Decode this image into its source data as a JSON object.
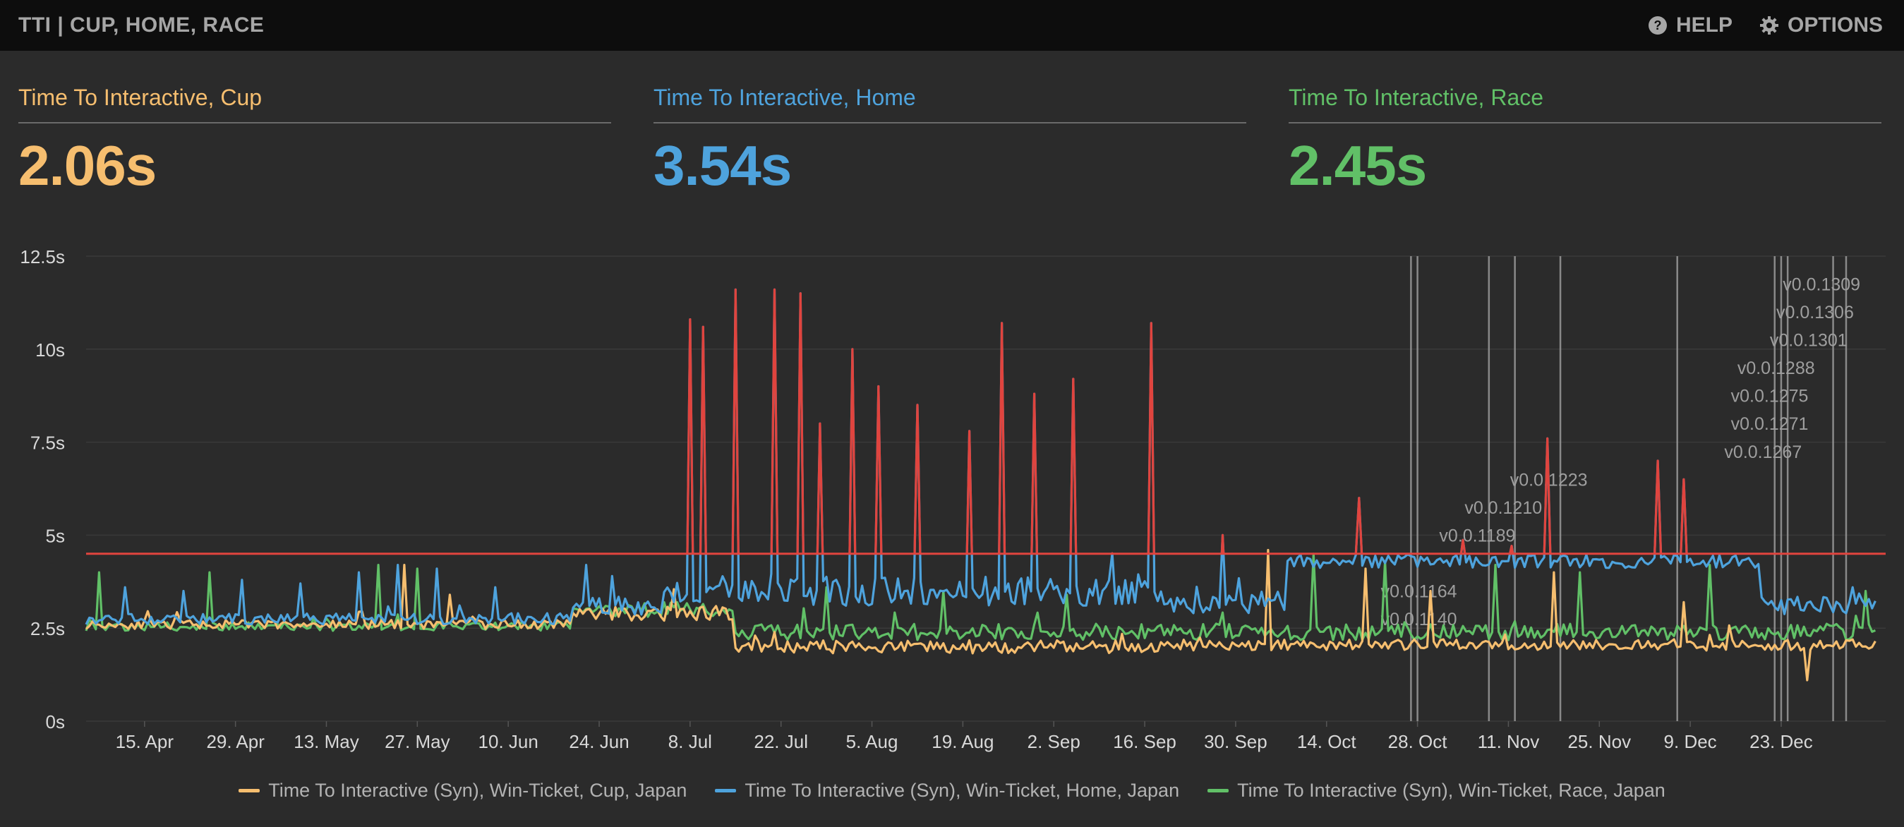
{
  "header": {
    "title": "TTI | CUP, HOME, RACE",
    "help_label": "HELP",
    "options_label": "OPTIONS"
  },
  "stats": [
    {
      "label": "Time To Interactive, Cup",
      "value": "2.06s",
      "color": "#f6be6f"
    },
    {
      "label": "Time To Interactive, Home",
      "value": "3.54s",
      "color": "#4ea3dd"
    },
    {
      "label": "Time To Interactive, Race",
      "value": "2.45s",
      "color": "#61c067"
    }
  ],
  "colors": {
    "cup": "#f6be6f",
    "home": "#4ea3dd",
    "race": "#61c067",
    "budget": "#e0443e",
    "grid": "#3a3a3a",
    "release_line": "#9a9a9a"
  },
  "chart_data": {
    "type": "line",
    "y_unit": "s",
    "ylim": [
      0,
      12.5
    ],
    "y_ticks": [
      "0s",
      "2.5s",
      "5s",
      "7.5s",
      "10s",
      "12.5s"
    ],
    "x_tick_labels": [
      "15. Apr",
      "29. Apr",
      "13. May",
      "27. May",
      "10. Jun",
      "24. Jun",
      "8. Jul",
      "22. Jul",
      "5. Aug",
      "19. Aug",
      "2. Sep",
      "16. Sep",
      "30. Sep",
      "14. Oct",
      "28. Oct",
      "11. Nov",
      "25. Nov",
      "9. Dec",
      "23. Dec"
    ],
    "x_range": [
      "06. Apr",
      "07. Jan"
    ],
    "threshold": {
      "value": 4.5,
      "note": "line above threshold drawn red"
    },
    "grid": true,
    "legend_position": "bottom",
    "series": [
      {
        "name": "Time To Interactive (Syn), Win-Ticket, Cup, Japan",
        "key": "cup",
        "segments": [
          {
            "from": "06. Apr",
            "to": "20. Jun",
            "base": 2.6,
            "noise": 0.12,
            "spikes": [
              [
                "25. May",
                4.2
              ],
              [
                "01. Jun",
                3.4
              ]
            ]
          },
          {
            "from": "20. Jun",
            "to": "15. Jul",
            "base": 2.9,
            "noise": 0.2,
            "spikes": []
          },
          {
            "from": "15. Jul",
            "to": "20. Sep",
            "base": 2.0,
            "noise": 0.18,
            "spikes": []
          },
          {
            "from": "20. Sep",
            "to": "07. Jan",
            "base": 2.05,
            "noise": 0.15,
            "spikes": [
              [
                "05. Oct",
                4.6
              ],
              [
                "20. Oct",
                4.1
              ],
              [
                "30. Oct",
                3.5
              ],
              [
                "18. Nov",
                4.0
              ],
              [
                "08. Dec",
                3.2
              ],
              [
                "27. Dec",
                1.1
              ]
            ]
          }
        ]
      },
      {
        "name": "Time To Interactive (Syn), Win-Ticket, Home, Japan",
        "key": "home",
        "segments": [
          {
            "from": "06. Apr",
            "to": "20. Jun",
            "base": 2.75,
            "noise": 0.15,
            "spikes": [
              [
                "12. Apr",
                3.6
              ],
              [
                "21. Apr",
                3.5
              ],
              [
                "30. Apr",
                3.8
              ],
              [
                "09. May",
                3.7
              ],
              [
                "18. May",
                4.0
              ],
              [
                "24. May",
                4.2
              ],
              [
                "30. May",
                4.1
              ],
              [
                "08. Jun",
                3.6
              ]
            ]
          },
          {
            "from": "20. Jun",
            "to": "04. Jul",
            "base": 3.1,
            "noise": 0.25,
            "spikes": [
              [
                "22. Jun",
                4.2
              ],
              [
                "26. Jun",
                3.9
              ]
            ]
          },
          {
            "from": "04. Jul",
            "to": "20. Sep",
            "base": 3.5,
            "noise": 0.4,
            "spikes": [
              [
                "08. Jul",
                10.8
              ],
              [
                "10. Jul",
                10.6
              ],
              [
                "15. Jul",
                11.6
              ],
              [
                "21. Jul",
                11.6
              ],
              [
                "25. Jul",
                11.5
              ],
              [
                "02. Aug",
                10.0
              ],
              [
                "12. Aug",
                8.5
              ],
              [
                "25. Aug",
                10.7
              ],
              [
                "05. Sep",
                9.2
              ],
              [
                "17. Sep",
                10.7
              ],
              [
                "28. Jul",
                8.0
              ],
              [
                "06. Aug",
                9.0
              ],
              [
                "20. Aug",
                7.8
              ],
              [
                "30. Aug",
                8.8
              ]
            ]
          },
          {
            "from": "20. Sep",
            "to": "08. Oct",
            "base": 3.2,
            "noise": 0.3,
            "spikes": [
              [
                "28. Sep",
                5.0
              ]
            ]
          },
          {
            "from": "08. Oct",
            "to": "20. Dec",
            "base": 4.3,
            "noise": 0.18,
            "spikes": [
              [
                "19. Oct",
                6.0
              ],
              [
                "17. Nov",
                7.6
              ],
              [
                "04. Dec",
                7.0
              ],
              [
                "08. Dec",
                6.5
              ]
            ]
          },
          {
            "from": "20. Dec",
            "to": "07. Jan",
            "base": 3.1,
            "noise": 0.25,
            "spikes": [
              [
                "03. Jan",
                3.6
              ]
            ]
          }
        ]
      },
      {
        "name": "Time To Interactive (Syn), Win-Ticket, Race, Japan",
        "key": "race",
        "segments": [
          {
            "from": "06. Apr",
            "to": "20. Jun",
            "base": 2.55,
            "noise": 0.12,
            "spikes": [
              [
                "08. Apr",
                4.0
              ],
              [
                "25. Apr",
                4.0
              ],
              [
                "21. May",
                4.2
              ],
              [
                "27. May",
                4.1
              ]
            ]
          },
          {
            "from": "20. Jun",
            "to": "15. Jul",
            "base": 3.0,
            "noise": 0.2,
            "spikes": []
          },
          {
            "from": "15. Jul",
            "to": "07. Jan",
            "base": 2.4,
            "noise": 0.22,
            "spikes": [
              [
                "29. Jul",
                3.6
              ],
              [
                "16. Aug",
                3.5
              ],
              [
                "04. Sep",
                3.4
              ],
              [
                "12. Oct",
                4.5
              ],
              [
                "23. Oct",
                4.3
              ],
              [
                "09. Nov",
                4.2
              ],
              [
                "22. Nov",
                4.0
              ],
              [
                "12. Dec",
                4.2
              ],
              [
                "05. Jan",
                3.5
              ]
            ]
          }
        ]
      }
    ],
    "release_markers": [
      {
        "label": "v0.0.1140",
        "date": "28. Oct",
        "y": 2.75
      },
      {
        "label": "v0.0.1164",
        "date": "28. Oct",
        "y": 3.5
      },
      {
        "label": "v0.0.1189",
        "date": "06. Nov",
        "y": 5.0
      },
      {
        "label": "v0.0.1210",
        "date": "10. Nov",
        "y": 5.75
      },
      {
        "label": "v0.0.1223",
        "date": "17. Nov",
        "y": 6.5
      },
      {
        "label": "v0.0.1267",
        "date": "20. Dec",
        "y": 7.25
      },
      {
        "label": "v0.0.1271",
        "date": "21. Dec",
        "y": 8.0
      },
      {
        "label": "v0.0.1275",
        "date": "21. Dec",
        "y": 8.75
      },
      {
        "label": "v0.0.1288",
        "date": "22. Dec",
        "y": 9.5
      },
      {
        "label": "v0.0.1301",
        "date": "27. Dec",
        "y": 10.25
      },
      {
        "label": "v0.0.1306",
        "date": "28. Dec",
        "y": 11.0
      },
      {
        "label": "v0.0.1309",
        "date": "29. Dec",
        "y": 11.75
      }
    ],
    "release_lines": [
      "27. Oct",
      "28. Oct",
      "08. Nov",
      "12. Nov",
      "19. Nov",
      "07. Dec",
      "22. Dec",
      "23. Dec",
      "24. Dec",
      "31. Dec",
      "02. Jan"
    ]
  }
}
